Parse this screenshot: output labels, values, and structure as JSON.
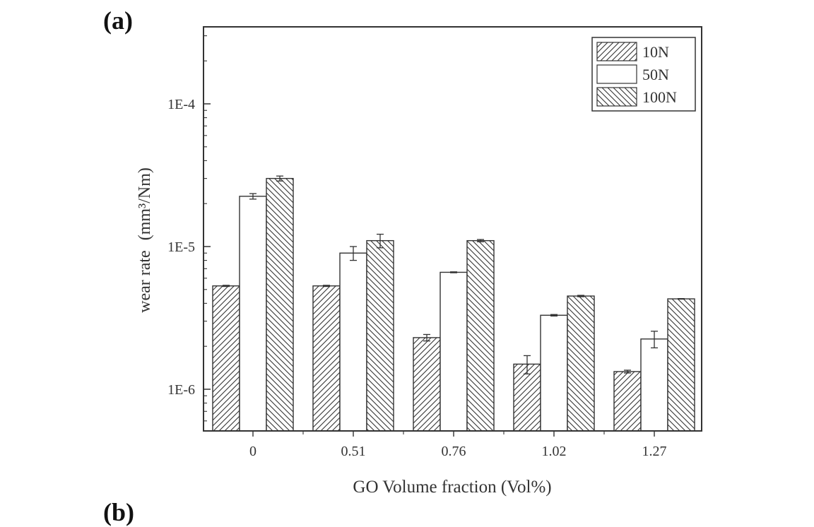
{
  "figure": {
    "panel_label": "(a)",
    "next_panel_label": "(b)"
  },
  "chart_data": {
    "type": "bar",
    "title": "",
    "xlabel": "GO Volume fraction (Vol%)",
    "ylabel": "wear rate",
    "ylabel_unit": "(mm³/Nm)",
    "yscale": "log",
    "ylim": [
      5e-07,
      0.0004
    ],
    "yticks": [
      1e-06,
      1e-05,
      0.0001
    ],
    "ytick_labels": [
      "1E-6",
      "1E-5",
      "1E-4"
    ],
    "categories": [
      "0",
      "0.51",
      "0.76",
      "1.02",
      "1.27"
    ],
    "series": [
      {
        "name": "10N",
        "pattern": "hatch-forward",
        "values": [
          5.3e-06,
          5.3e-06,
          2.3e-06,
          1.5e-06,
          1.33e-06
        ],
        "errors": [
          5e-08,
          5e-08,
          1.2e-07,
          2.2e-07,
          3e-08
        ]
      },
      {
        "name": "50N",
        "pattern": "plain",
        "values": [
          2.25e-05,
          9e-06,
          6.6e-06,
          3.3e-06,
          2.25e-06
        ],
        "errors": [
          1e-06,
          1e-06,
          5e-08,
          4e-08,
          3e-07
        ]
      },
      {
        "name": "100N",
        "pattern": "hatch-backward",
        "values": [
          3e-05,
          1.1e-05,
          1.1e-05,
          4.5e-06,
          4.3e-06
        ],
        "errors": [
          1.2e-06,
          1.2e-06,
          2e-07,
          5e-08,
          2e-08
        ]
      }
    ],
    "legend": {
      "position": "top-right",
      "entries": [
        "10N",
        "50N",
        "100N"
      ]
    },
    "grid": false
  }
}
